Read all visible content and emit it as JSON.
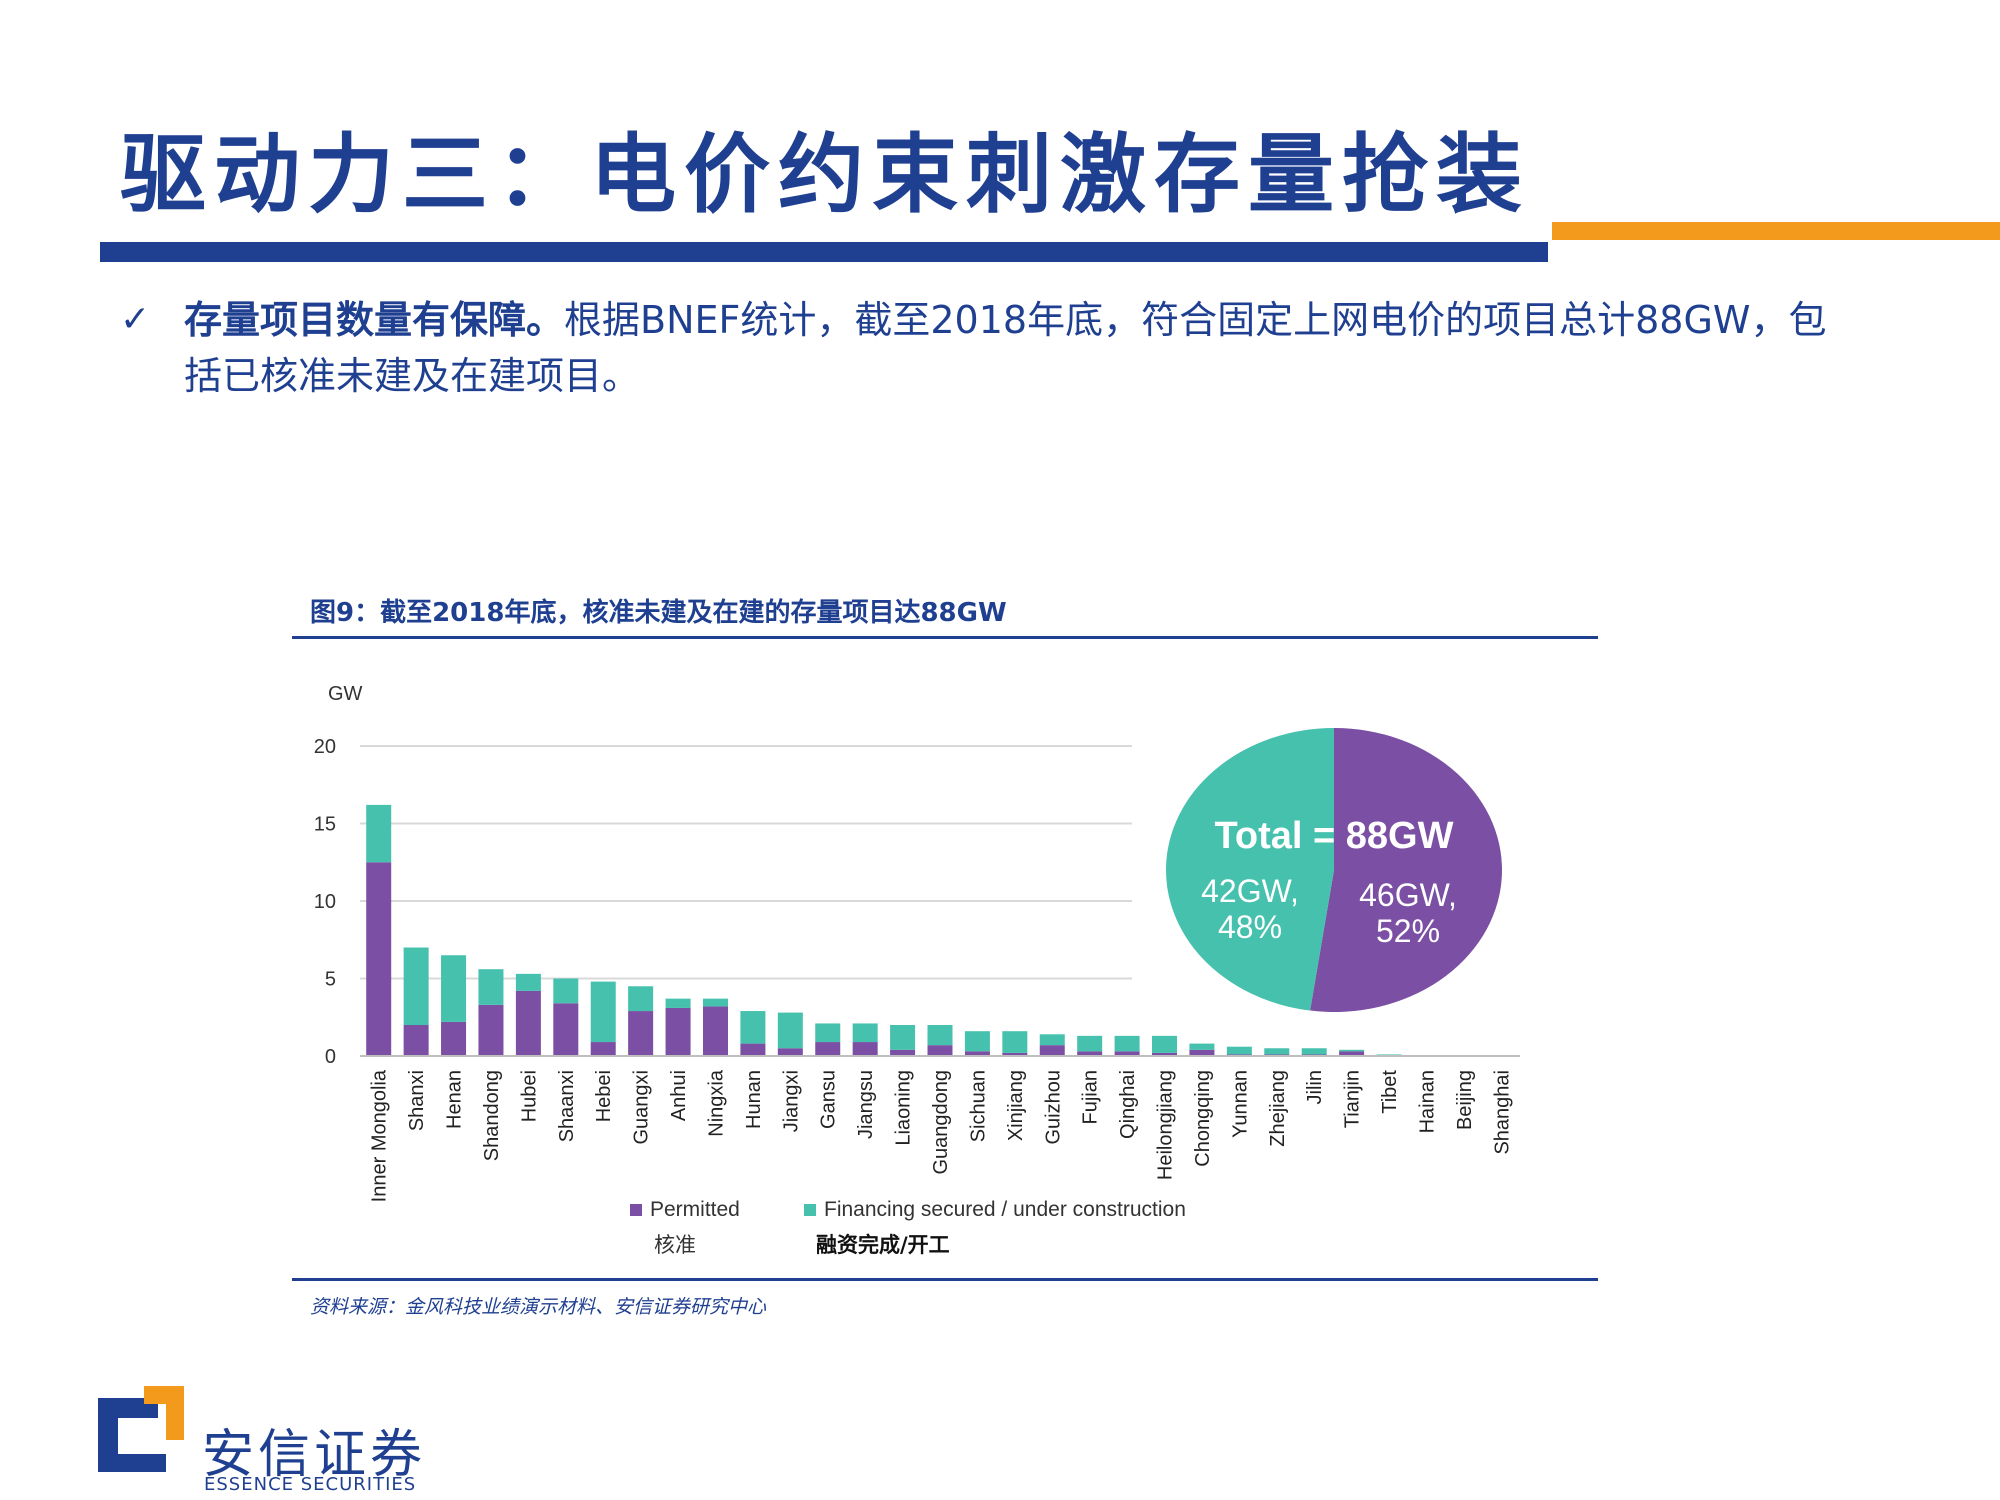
{
  "page": {
    "title": "驱动力三：电价约束刺激存量抢装",
    "bullet_bold": "存量项目数量有保障。",
    "bullet_text": "根据BNEF统计，截至2018年底，符合固定上网电价的项目总计88GW，包括已核准未建及在建项目。",
    "figure_title": "图9：截至2018年底，核准未建及在建的存量项目达88GW",
    "source": "资料来源：金风科技业绩演示材料、安信证券研究中心",
    "logo_cn": "安信证券",
    "logo_en": "ESSENCE SECURITIES"
  },
  "colors": {
    "permitted": "#7b4fa3",
    "financing": "#45c1ad",
    "brand_blue": "#1f3f91",
    "brand_orange": "#f39a1c"
  },
  "chart_data": [
    {
      "type": "bar",
      "stacked": true,
      "ylabel": "GW",
      "ylim": [
        0,
        20
      ],
      "yticks": [
        0,
        5,
        10,
        15,
        20
      ],
      "grid": true,
      "categories": [
        "Inner Mongolia",
        "Shanxi",
        "Henan",
        "Shandong",
        "Hubei",
        "Shaanxi",
        "Hebei",
        "Guangxi",
        "Anhui",
        "Ningxia",
        "Hunan",
        "Jiangxi",
        "Gansu",
        "Jiangsu",
        "Liaoning",
        "Guangdong",
        "Sichuan",
        "Xinjiang",
        "Guizhou",
        "Fujian",
        "Qinghai",
        "Heilongjiang",
        "Chongqing",
        "Yunnan",
        "Zhejiang",
        "Jilin",
        "Tianjin",
        "Tibet",
        "Hainan",
        "Beijing",
        "Shanghai"
      ],
      "series": [
        {
          "name": "Permitted",
          "name_cn": "核准",
          "values": [
            12.5,
            2.0,
            2.2,
            3.3,
            4.2,
            3.4,
            0.9,
            2.9,
            3.1,
            3.2,
            0.8,
            0.5,
            0.9,
            0.9,
            0.4,
            0.7,
            0.3,
            0.2,
            0.7,
            0.3,
            0.3,
            0.2,
            0.4,
            0.1,
            0.1,
            0.1,
            0.3,
            0.0,
            0.0,
            0.0,
            0.0
          ]
        },
        {
          "name": "Financing secured / under construction",
          "name_cn": "融资完成/开工",
          "values": [
            3.7,
            5.0,
            4.3,
            2.3,
            1.1,
            1.6,
            3.9,
            1.6,
            0.6,
            0.5,
            2.1,
            2.3,
            1.2,
            1.2,
            1.6,
            1.3,
            1.3,
            1.4,
            0.7,
            1.0,
            1.0,
            1.1,
            0.4,
            0.5,
            0.4,
            0.4,
            0.1,
            0.1,
            0.0,
            0.0,
            0.0
          ]
        }
      ],
      "legend": "bottom"
    },
    {
      "type": "pie",
      "total_label": "Total = 88GW",
      "slices": [
        {
          "name": "Permitted",
          "value": 46,
          "label_value": "46GW,",
          "label_pct": "52%"
        },
        {
          "name": "Financing secured / under construction",
          "value": 42,
          "label_value": "42GW,",
          "label_pct": "48%"
        }
      ]
    }
  ]
}
